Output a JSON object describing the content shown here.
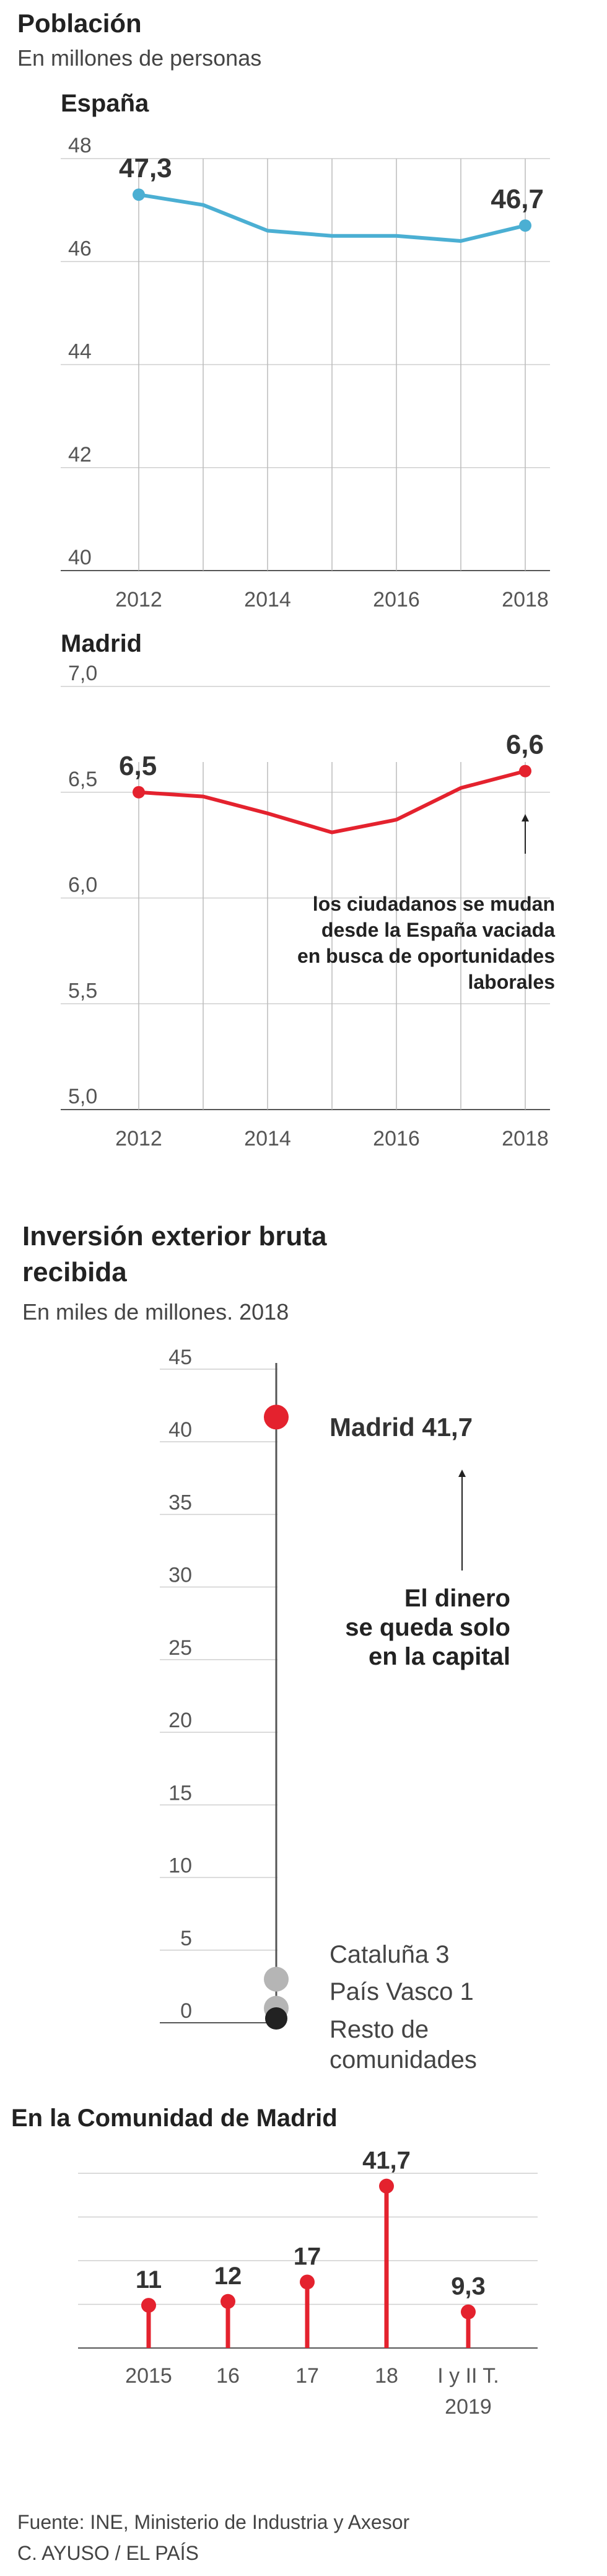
{
  "section1": {
    "title": "Población",
    "subtitle": "En millones de personas"
  },
  "section2": {
    "title_line1": "Inversión exterior bruta",
    "title_line2": "recibida",
    "subtitle": "En miles de millones. 2018",
    "annotation_line1": "El dinero",
    "annotation_line2": "se queda solo",
    "annotation_line3": "en la capital"
  },
  "colors": {
    "spain_line": "#4bafd3",
    "madrid_line": "#e4222e",
    "grey_dot": "#b5b5b5",
    "dark_dot": "#222222"
  },
  "footer": {
    "source": "Fuente: INE, Ministerio de Industria y Axesor",
    "credit": "C. AYUSO / EL PAÍS"
  },
  "chart_data": [
    {
      "type": "line",
      "title": "España",
      "x": [
        2012,
        2013,
        2014,
        2015,
        2016,
        2017,
        2018
      ],
      "values": [
        47.3,
        47.1,
        46.6,
        46.5,
        46.5,
        46.4,
        46.7
      ],
      "ylim": [
        40,
        48
      ],
      "yticks": [
        "40",
        "42",
        "44",
        "46",
        "48"
      ],
      "xticks": [
        "2012",
        "2014",
        "2016",
        "2018"
      ],
      "labels": {
        "first": "47,3",
        "last": "46,7"
      },
      "grid": true
    },
    {
      "type": "line",
      "title": "Madrid",
      "x": [
        2012,
        2013,
        2014,
        2015,
        2016,
        2017,
        2018
      ],
      "values": [
        6.5,
        6.48,
        6.4,
        6.31,
        6.37,
        6.52,
        6.6
      ],
      "ylim": [
        5.0,
        7.0
      ],
      "yticks": [
        "5,0",
        "5,5",
        "6,0",
        "6,5",
        "7,0"
      ],
      "xticks": [
        "2012",
        "2014",
        "2016",
        "2018"
      ],
      "labels": {
        "first": "6,5",
        "last": "6,6"
      },
      "annotation": [
        "los ciudadanos se mudan",
        "desde la España vaciada",
        "en busca de oportunidades",
        "laborales"
      ],
      "grid": true
    },
    {
      "type": "scatter",
      "title": "Inversión exterior bruta recibida",
      "points": [
        {
          "name": "Madrid",
          "value": 41.7,
          "label": "Madrid 41,7"
        },
        {
          "name": "Cataluña",
          "value": 3,
          "label": "Cataluña 3"
        },
        {
          "name": "País Vasco",
          "value": 1,
          "label": "País Vasco 1"
        },
        {
          "name": "Resto de comunidades",
          "value": 0.3,
          "label_line1": "Resto de",
          "label_line2": "comunidades"
        }
      ],
      "ylim": [
        0,
        45
      ],
      "yticks": [
        "0",
        "5",
        "10",
        "15",
        "20",
        "25",
        "30",
        "35",
        "40",
        "45"
      ]
    },
    {
      "type": "bar",
      "title": "En la Comunidad de Madrid",
      "categories": [
        "2015",
        "16",
        "17",
        "18",
        "I y II T."
      ],
      "category_sublabels": [
        "",
        "",
        "",
        "",
        "2019"
      ],
      "values": [
        11,
        12,
        17,
        41.7,
        9.3
      ],
      "value_labels": [
        "11",
        "12",
        "17",
        "41,7",
        "9,3"
      ],
      "ylim": [
        0,
        45
      ],
      "grid": true
    }
  ]
}
